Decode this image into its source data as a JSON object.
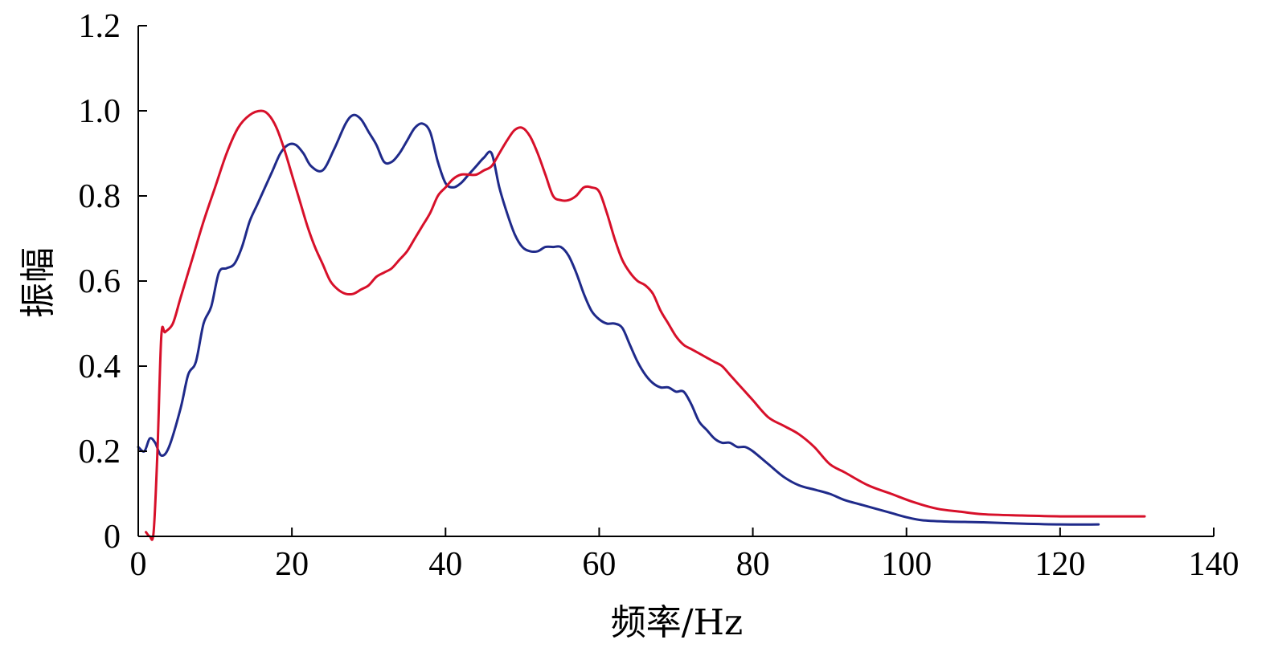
{
  "chart_data": {
    "type": "line",
    "xlabel": "频率/Hz",
    "ylabel": "振幅",
    "xlim": [
      0,
      140
    ],
    "ylim": [
      0,
      1.2
    ],
    "x_ticks": [
      0,
      20,
      40,
      60,
      80,
      100,
      120,
      140
    ],
    "x_tick_labels": [
      "0",
      "20",
      "40",
      "60",
      "80",
      "100",
      "120",
      "140"
    ],
    "y_ticks": [
      0,
      0.2,
      0.4,
      0.6,
      0.8,
      1.0,
      1.2
    ],
    "y_tick_labels": [
      "0",
      "0.2",
      "0.4",
      "0.6",
      "0.8",
      "1.0",
      "1.2"
    ],
    "grid": false,
    "series": [
      {
        "color": "#1f2a8a",
        "x": [
          0,
          0.8,
          1.5,
          2.2,
          3.0,
          4.0,
          5.5,
          6.5,
          7.5,
          8.5,
          9.5,
          10.5,
          11.5,
          12.5,
          13.5,
          14.5,
          15.5,
          16.5,
          17.5,
          18.5,
          19.5,
          20.5,
          21.5,
          22.5,
          24.0,
          25.5,
          27.0,
          28.0,
          29.0,
          30.0,
          31.0,
          32.0,
          33.0,
          34.0,
          35.0,
          36.0,
          37.0,
          38.0,
          39.0,
          40.0,
          41.0,
          42.0,
          43.0,
          44.0,
          45.0,
          46.0,
          47.0,
          48.0,
          49.0,
          50.0,
          51.0,
          52.0,
          53.0,
          54.0,
          55.0,
          56.0,
          57.0,
          58.0,
          59.0,
          60.0,
          61.0,
          62.0,
          63.0,
          64.0,
          65.0,
          66.0,
          67.0,
          68.0,
          69.0,
          70.0,
          71.0,
          72.0,
          73.0,
          74.0,
          75.0,
          76.0,
          77.0,
          78.0,
          79.0,
          80.0,
          82.0,
          84.0,
          86.0,
          88.0,
          90.0,
          92.0,
          94.0,
          96.0,
          98.0,
          100.0,
          102.0,
          105.0,
          110.0,
          115.0,
          120.0,
          125.0
        ],
        "y": [
          0.21,
          0.2,
          0.23,
          0.22,
          0.19,
          0.21,
          0.3,
          0.38,
          0.41,
          0.5,
          0.54,
          0.62,
          0.63,
          0.64,
          0.68,
          0.74,
          0.78,
          0.82,
          0.86,
          0.9,
          0.92,
          0.92,
          0.9,
          0.87,
          0.86,
          0.91,
          0.97,
          0.99,
          0.98,
          0.95,
          0.92,
          0.88,
          0.88,
          0.9,
          0.93,
          0.96,
          0.97,
          0.95,
          0.88,
          0.83,
          0.82,
          0.83,
          0.85,
          0.87,
          0.89,
          0.9,
          0.82,
          0.76,
          0.71,
          0.68,
          0.67,
          0.67,
          0.68,
          0.68,
          0.68,
          0.66,
          0.62,
          0.57,
          0.53,
          0.51,
          0.5,
          0.5,
          0.49,
          0.45,
          0.41,
          0.38,
          0.36,
          0.35,
          0.35,
          0.34,
          0.34,
          0.31,
          0.27,
          0.25,
          0.23,
          0.22,
          0.22,
          0.21,
          0.21,
          0.2,
          0.17,
          0.14,
          0.12,
          0.11,
          0.1,
          0.085,
          0.075,
          0.065,
          0.055,
          0.045,
          0.038,
          0.035,
          0.033,
          0.03,
          0.028,
          0.028
        ]
      },
      {
        "color": "#d7102a",
        "x": [
          1.0,
          1.5,
          2.0,
          2.5,
          3.0,
          3.5,
          4.5,
          5.5,
          7.0,
          8.5,
          10.0,
          11.5,
          13.0,
          14.5,
          16.0,
          17.0,
          18.0,
          19.0,
          20.0,
          21.0,
          22.0,
          23.0,
          24.0,
          25.0,
          26.0,
          27.0,
          28.0,
          29.0,
          30.0,
          31.0,
          32.0,
          33.0,
          34.0,
          35.0,
          36.0,
          37.0,
          38.0,
          39.0,
          40.0,
          41.0,
          42.0,
          43.0,
          44.0,
          45.0,
          46.0,
          47.0,
          48.0,
          49.0,
          50.0,
          51.0,
          52.0,
          53.0,
          54.0,
          55.0,
          56.0,
          57.0,
          58.0,
          59.0,
          60.0,
          61.0,
          62.0,
          63.0,
          64.0,
          65.0,
          66.0,
          67.0,
          68.0,
          69.0,
          70.0,
          71.0,
          72.0,
          73.0,
          74.0,
          75.0,
          76.0,
          77.0,
          78.0,
          79.0,
          80.0,
          82.0,
          84.0,
          86.0,
          88.0,
          90.0,
          92.0,
          95.0,
          98.0,
          101.0,
          104.0,
          107.0,
          110.0,
          115.0,
          120.0,
          125.0,
          131.0
        ],
        "y": [
          0.01,
          0.0,
          0.01,
          0.2,
          0.47,
          0.48,
          0.5,
          0.56,
          0.65,
          0.74,
          0.82,
          0.9,
          0.96,
          0.99,
          1.0,
          0.99,
          0.96,
          0.91,
          0.85,
          0.79,
          0.73,
          0.68,
          0.64,
          0.6,
          0.58,
          0.57,
          0.57,
          0.58,
          0.59,
          0.61,
          0.62,
          0.63,
          0.65,
          0.67,
          0.7,
          0.73,
          0.76,
          0.8,
          0.82,
          0.84,
          0.85,
          0.85,
          0.85,
          0.86,
          0.87,
          0.9,
          0.93,
          0.955,
          0.96,
          0.94,
          0.9,
          0.85,
          0.8,
          0.79,
          0.79,
          0.8,
          0.82,
          0.82,
          0.81,
          0.76,
          0.7,
          0.65,
          0.62,
          0.6,
          0.59,
          0.57,
          0.53,
          0.5,
          0.47,
          0.45,
          0.44,
          0.43,
          0.42,
          0.41,
          0.4,
          0.38,
          0.36,
          0.34,
          0.32,
          0.28,
          0.26,
          0.24,
          0.21,
          0.17,
          0.15,
          0.12,
          0.1,
          0.08,
          0.065,
          0.058,
          0.052,
          0.049,
          0.047,
          0.047,
          0.047
        ]
      }
    ]
  }
}
